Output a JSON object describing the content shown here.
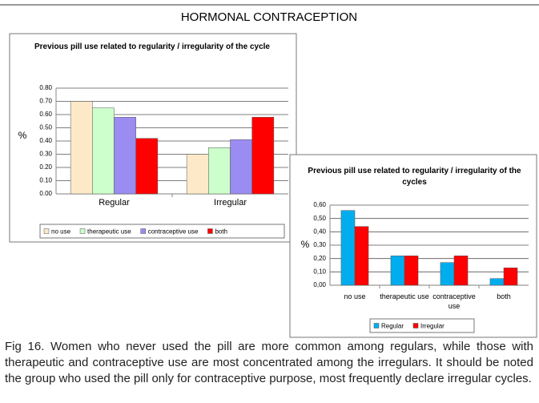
{
  "title": "HORMONAL CONTRACEPTION",
  "chart_data": [
    {
      "type": "bar",
      "title": "Previous pill use related to regularity / irregularity of the cycle",
      "y_label": "%",
      "categories": [
        "Regular",
        "Irregular"
      ],
      "series": [
        {
          "name": "no use",
          "color": "#fde9c8",
          "values": [
            0.7,
            0.3
          ]
        },
        {
          "name": "therapeutic use",
          "color": "#ccffcc",
          "values": [
            0.65,
            0.35
          ]
        },
        {
          "name": "contraceptive use",
          "color": "#9a8cf0",
          "values": [
            0.58,
            0.41
          ]
        },
        {
          "name": "both",
          "color": "#ff0000",
          "values": [
            0.42,
            0.58
          ]
        }
      ],
      "ylim": [
        0,
        0.8
      ],
      "yticks": [
        {
          "value": 0,
          "label": "0.00"
        },
        {
          "value": 0.1,
          "label": "0.10"
        },
        {
          "value": 0.2,
          "label": "0.20"
        },
        {
          "value": 0.3,
          "label": "0.30"
        },
        {
          "value": 0.4,
          "label": "0.40"
        },
        {
          "value": 0.5,
          "label": "0.50"
        },
        {
          "value": 0.6,
          "label": "0.60"
        },
        {
          "value": 0.7,
          "label": "0.70"
        },
        {
          "value": 0.8,
          "label": "0.80"
        }
      ],
      "grid": true,
      "legend": "bottom"
    },
    {
      "type": "bar",
      "title": "Previous pill use related to regularity / irregularity of the cycles",
      "y_label": "%",
      "categories": [
        "no use",
        "therapeutic use",
        "contraceptive use",
        "both"
      ],
      "series": [
        {
          "name": "Regular",
          "color": "#00aeef",
          "values": [
            0.56,
            0.22,
            0.17,
            0.05
          ]
        },
        {
          "name": "Irregular",
          "color": "#ff0000",
          "values": [
            0.44,
            0.22,
            0.22,
            0.13
          ]
        }
      ],
      "ylim": [
        0,
        0.6
      ],
      "yticks": [
        {
          "value": 0,
          "label": "0,00"
        },
        {
          "value": 0.1,
          "label": "0,10"
        },
        {
          "value": 0.2,
          "label": "0,20"
        },
        {
          "value": 0.3,
          "label": "0,30"
        },
        {
          "value": 0.4,
          "label": "0,40"
        },
        {
          "value": 0.5,
          "label": "0,50"
        },
        {
          "value": 0.6,
          "label": "0,60"
        }
      ],
      "grid": true,
      "legend": "bottom"
    }
  ],
  "caption": "Fig 16. Women who never used the pill are more common among regulars, while those with therapeutic and contraceptive use are most concentrated among the irregulars. It should be noted the group who used the pill only for contraceptive purpose, most frequently declare irregular cycles."
}
